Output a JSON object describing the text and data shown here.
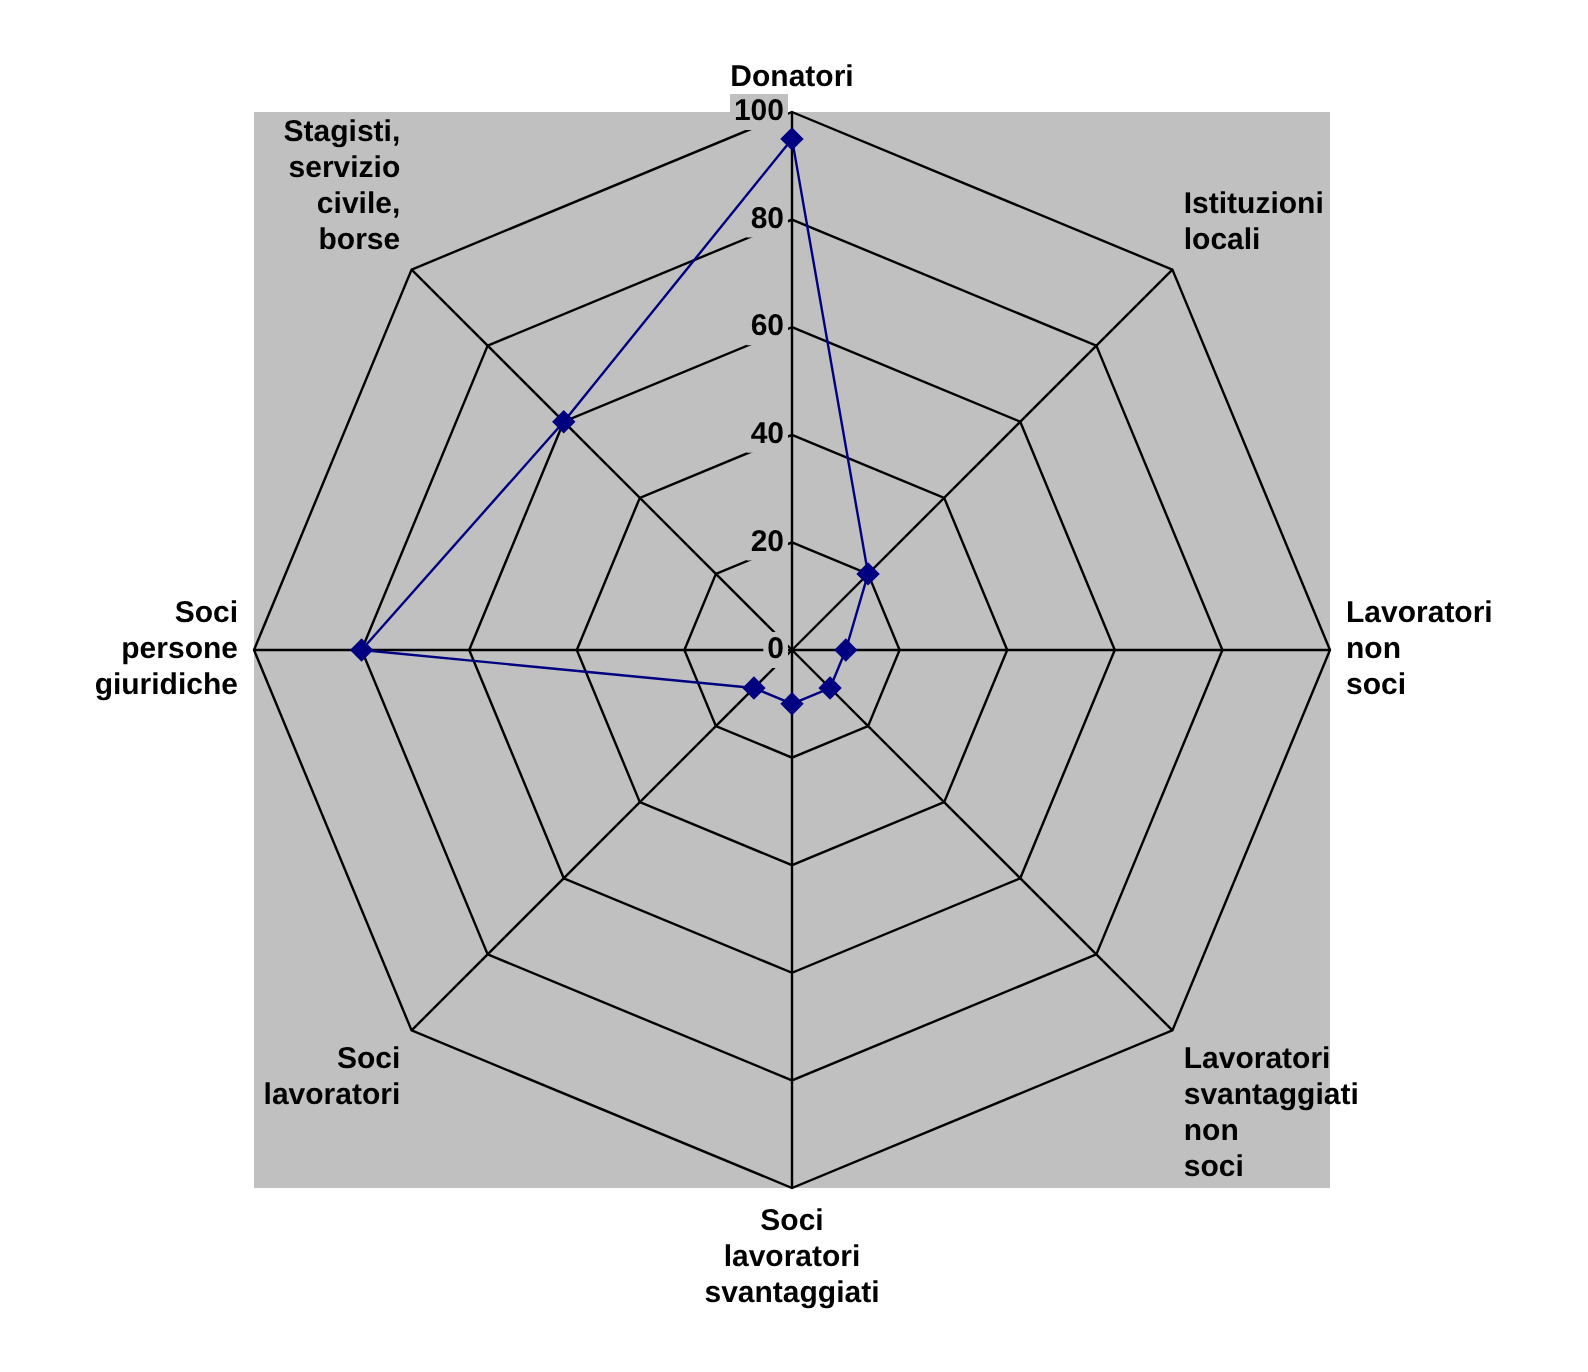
{
  "chart_data": {
    "type": "radar",
    "categories": [
      "Donatori",
      "Istituzioni locali",
      "Lavoratori non soci",
      "Lavoratori svantaggiati non soci",
      "Soci lavoratori svantaggiati",
      "Soci lavoratori",
      "Soci persone giuridiche",
      "Stagisti, servizio civile, borse"
    ],
    "series": [
      {
        "color": "#000080",
        "values": [
          95,
          20,
          10,
          10,
          10,
          10,
          80,
          60
        ]
      }
    ],
    "ylim": [
      0,
      100
    ],
    "yticks": [
      0,
      20,
      40,
      60,
      80,
      100
    ],
    "grid": true,
    "legend": false,
    "marker": "diamond",
    "line_style": "solid"
  }
}
